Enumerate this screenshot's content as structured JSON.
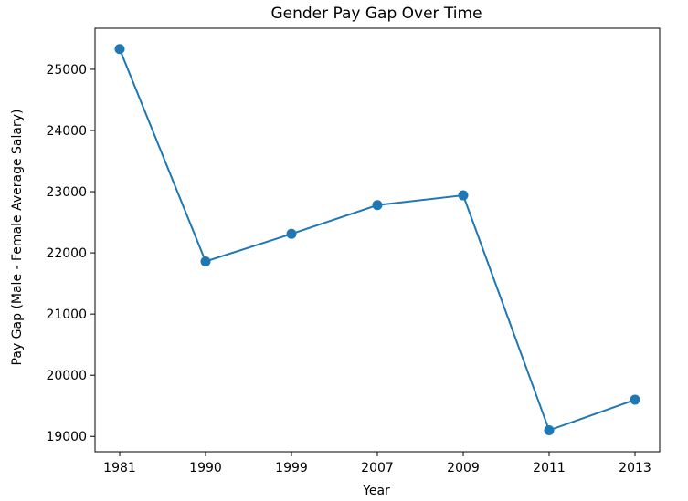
{
  "chart_data": {
    "type": "line",
    "title": "Gender Pay Gap Over Time",
    "xlabel": "Year",
    "ylabel": "Pay Gap (Male - Female Average Salary)",
    "categories": [
      "1981",
      "1990",
      "1999",
      "2007",
      "2009",
      "2011",
      "2013"
    ],
    "series": [
      {
        "values": [
          25330,
          21860,
          22310,
          22780,
          22940,
          19100,
          19600
        ]
      }
    ],
    "yticks": [
      19000,
      20000,
      21000,
      22000,
      23000,
      24000,
      25000
    ],
    "ylim": [
      18750,
      25670
    ],
    "grid": false,
    "legend": "none",
    "line_color": "#1f77b4",
    "marker": "circle"
  }
}
